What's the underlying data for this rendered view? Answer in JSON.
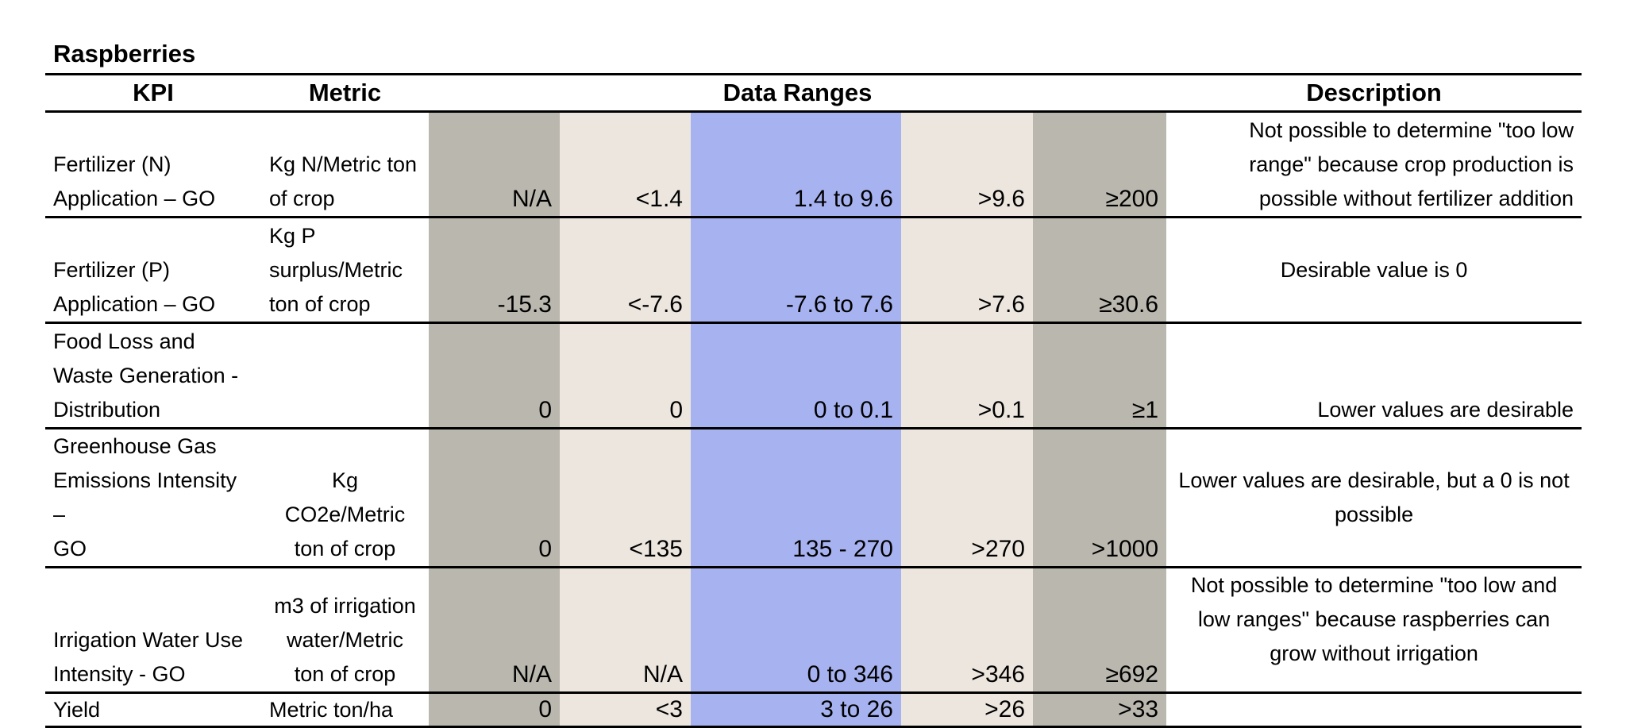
{
  "title": "Raspberries",
  "headers": {
    "kpi": "KPI",
    "metric": "Metric",
    "ranges": "Data Ranges",
    "description": "Description"
  },
  "colors": {
    "outer_range": "#bab7ae",
    "mid_range": "#ede6df",
    "target_range": "#a7b3f0"
  },
  "rows": [
    {
      "kpi": "Fertilizer (N)\nApplication – GO",
      "metric": "Kg N/Metric ton\nof crop",
      "ranges": [
        "N/A",
        "<1.4",
        "1.4 to 9.6",
        ">9.6",
        "≥200"
      ],
      "description": "Not possible to determine \"too low\nrange\" because crop production is\npossible without fertilizer addition"
    },
    {
      "kpi": "Fertilizer (P)\nApplication – GO",
      "metric": "Kg P\nsurplus/Metric\nton of crop",
      "ranges": [
        "-15.3",
        "<-7.6",
        "-7.6 to 7.6",
        ">7.6",
        "≥30.6"
      ],
      "description": "Desirable value is 0"
    },
    {
      "kpi": "Food Loss and\nWaste Generation -\nDistribution",
      "metric": "",
      "ranges": [
        "0",
        "0",
        "0 to 0.1",
        ">0.1",
        "≥1"
      ],
      "description": "Lower values are desirable"
    },
    {
      "kpi": "Greenhouse Gas\nEmissions Intensity –\nGO",
      "metric": "Kg\nCO2e/Metric\nton of crop",
      "ranges": [
        "0",
        "<135",
        "135 - 270",
        ">270",
        ">1000"
      ],
      "description": "Lower values are desirable, but a 0 is not\npossible"
    },
    {
      "kpi": "Irrigation Water Use\nIntensity - GO",
      "metric": "m3 of irrigation\nwater/Metric\nton of crop",
      "ranges": [
        "N/A",
        "N/A",
        "0 to 346",
        ">346",
        "≥692"
      ],
      "description": "Not possible to determine \"too low and\nlow ranges\" because raspberries can\ngrow without irrigation"
    },
    {
      "kpi": "Yield",
      "metric": "Metric ton/ha",
      "ranges": [
        "0",
        "<3",
        "3 to 26",
        ">26",
        ">33"
      ],
      "description": ""
    }
  ]
}
